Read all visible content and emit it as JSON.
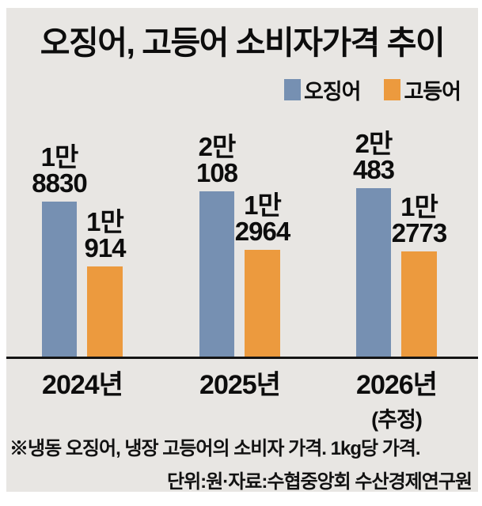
{
  "chart_data": {
    "type": "bar",
    "title": "오징어, 고등어 소비자가격 추이",
    "categories": [
      "2024년",
      "2025년",
      "2026년"
    ],
    "category_notes": [
      "",
      "",
      "(추정)"
    ],
    "series": [
      {
        "name": "오징어",
        "color": "#7690b2",
        "values": [
          18830,
          20108,
          20483
        ],
        "value_labels": [
          [
            "1만",
            "8830"
          ],
          [
            "2만",
            "108"
          ],
          [
            "2만",
            "483"
          ]
        ]
      },
      {
        "name": "고등어",
        "color": "#ec9a3e",
        "values": [
          10914,
          12964,
          12773
        ],
        "value_labels": [
          [
            "1만",
            "914"
          ],
          [
            "1만",
            "2964"
          ],
          [
            "1만",
            "2773"
          ]
        ]
      }
    ],
    "ylim": [
      0,
      21000
    ],
    "grid": false,
    "legend_position": "top-right",
    "xlabel": "",
    "ylabel": ""
  },
  "footnotes": [
    "※냉동 오징어, 냉장 고등어의 소비자 가격. 1kg당 가격.",
    "단위:원·자료:수협중앙회 수산경제연구원"
  ],
  "colors": {
    "squid_bar": "#7690b2",
    "mackerel_bar": "#ec9a3e",
    "panel_background": "#e8e6e3",
    "axis_line": "#141414",
    "text": "#0d0d0d"
  }
}
